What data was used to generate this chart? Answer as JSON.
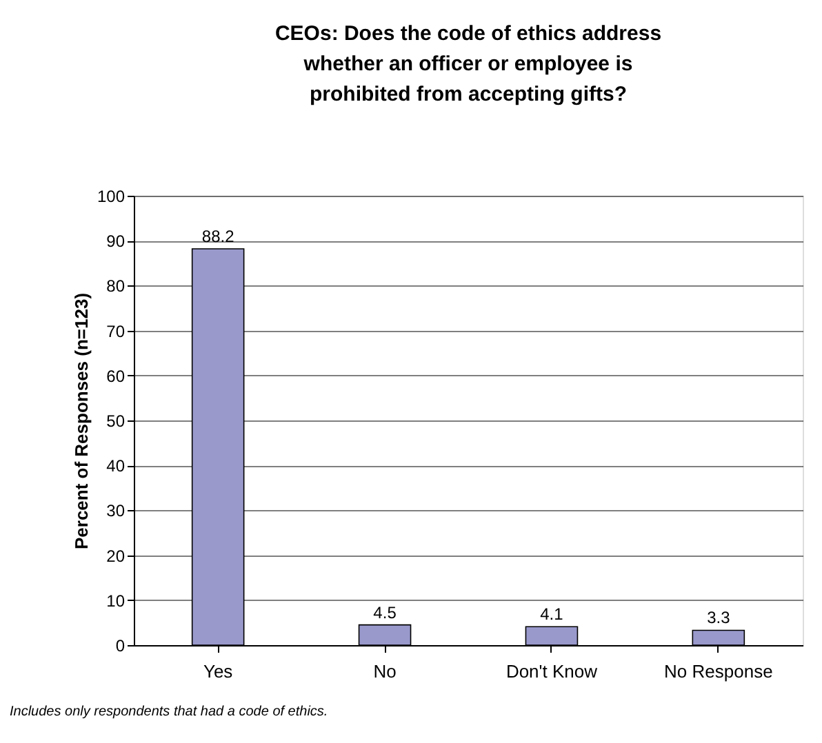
{
  "chart_data": {
    "type": "bar",
    "title": "CEOs: Does the code of ethics address whether an officer or employee is prohibited from accepting gifts?",
    "ylabel": "Percent of Responses (n=123)",
    "categories": [
      "Yes",
      "No",
      "Don't Know",
      "No Response"
    ],
    "values": [
      88.2,
      4.5,
      4.1,
      3.3
    ],
    "color": "#9999cc",
    "ylim": [
      0,
      100
    ],
    "yticks": [
      0,
      10,
      20,
      30,
      40,
      50,
      60,
      70,
      80,
      90,
      100
    ],
    "grid": "y",
    "data_labels": true,
    "annotations": [
      "Includes only respondents that had a code of ethics."
    ]
  }
}
